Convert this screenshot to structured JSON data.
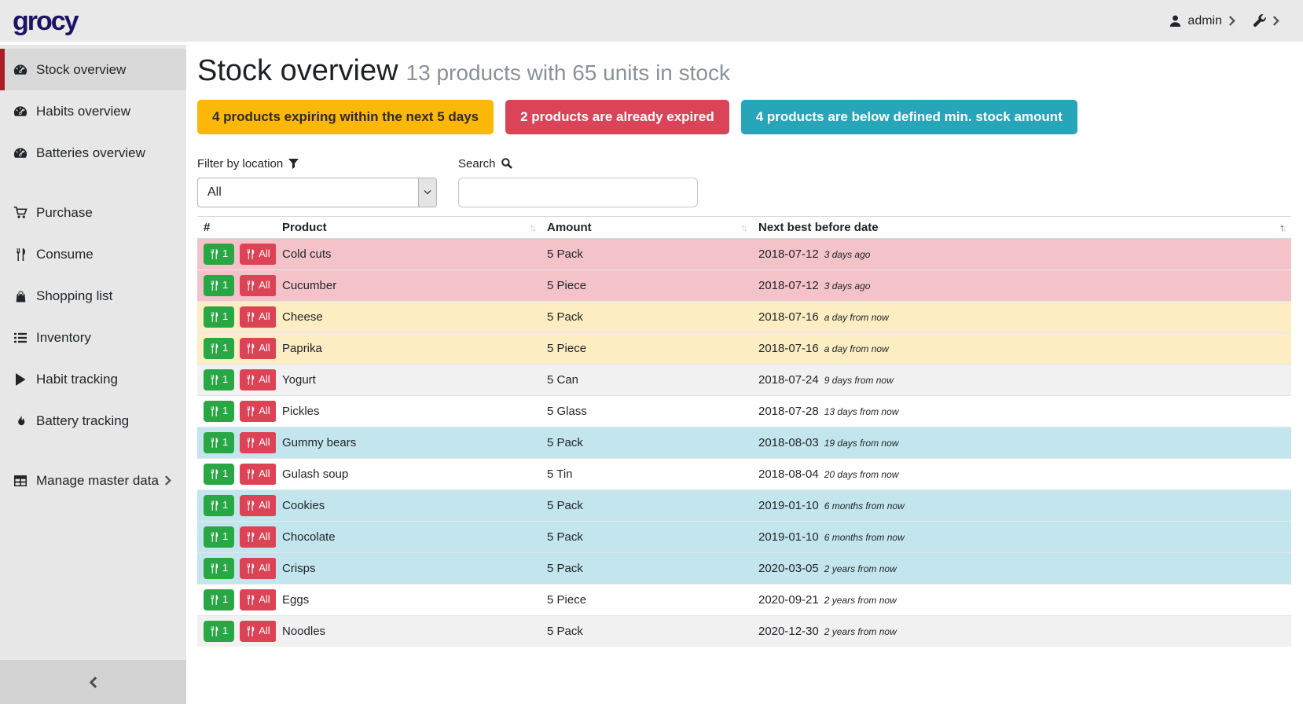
{
  "navbar": {
    "logo": "grocy",
    "user": "admin"
  },
  "sidebar": {
    "items": [
      {
        "label": "Stock overview",
        "icon": "tachometer-icon",
        "active": true,
        "spacer_before": false,
        "chevron": false
      },
      {
        "label": "Habits overview",
        "icon": "tachometer-icon",
        "active": false,
        "spacer_before": false,
        "chevron": false
      },
      {
        "label": "Batteries overview",
        "icon": "tachometer-icon",
        "active": false,
        "spacer_before": false,
        "chevron": false
      },
      {
        "label": "Purchase",
        "icon": "cart-icon",
        "active": false,
        "spacer_before": true,
        "chevron": false
      },
      {
        "label": "Consume",
        "icon": "utensils-icon",
        "active": false,
        "spacer_before": false,
        "chevron": false
      },
      {
        "label": "Shopping list",
        "icon": "shopping-bag-icon",
        "active": false,
        "spacer_before": false,
        "chevron": false
      },
      {
        "label": "Inventory",
        "icon": "list-icon",
        "active": false,
        "spacer_before": false,
        "chevron": false
      },
      {
        "label": "Habit tracking",
        "icon": "play-icon",
        "active": false,
        "spacer_before": false,
        "chevron": false
      },
      {
        "label": "Battery tracking",
        "icon": "fire-icon",
        "active": false,
        "spacer_before": false,
        "chevron": false
      },
      {
        "label": "Manage master data",
        "icon": "table-icon",
        "active": false,
        "spacer_before": true,
        "chevron": true
      }
    ]
  },
  "header": {
    "title": "Stock overview",
    "subtitle": "13 products with 65 units in stock"
  },
  "badges": [
    {
      "label": "4 products expiring within the next 5 days",
      "status": "warning"
    },
    {
      "label": "2 products are already expired",
      "status": "danger"
    },
    {
      "label": "4 products are below defined min. stock amount",
      "status": "info"
    }
  ],
  "filters": {
    "location_label": "Filter by location",
    "location_value": "All",
    "search_label": "Search",
    "search_value": ""
  },
  "table": {
    "columns": [
      "#",
      "Product",
      "Amount",
      "Next best before date"
    ],
    "sorted_by": "Next best before date",
    "sort_direction": "asc",
    "row_buttons": {
      "consume_one": "1",
      "consume_all": "All"
    },
    "rows": [
      {
        "product": "Cold cuts",
        "amount": "5 Pack",
        "date": "2018-07-12",
        "relative": "3 days ago",
        "state": "expired"
      },
      {
        "product": "Cucumber",
        "amount": "5 Piece",
        "date": "2018-07-12",
        "relative": "3 days ago",
        "state": "expired"
      },
      {
        "product": "Cheese",
        "amount": "5 Pack",
        "date": "2018-07-16",
        "relative": "a day from now",
        "state": "expiring"
      },
      {
        "product": "Paprika",
        "amount": "5 Piece",
        "date": "2018-07-16",
        "relative": "a day from now",
        "state": "expiring"
      },
      {
        "product": "Yogurt",
        "amount": "5 Can",
        "date": "2018-07-24",
        "relative": "9 days from now",
        "state": "none"
      },
      {
        "product": "Pickles",
        "amount": "5 Glass",
        "date": "2018-07-28",
        "relative": "13 days from now",
        "state": "none"
      },
      {
        "product": "Gummy bears",
        "amount": "5 Pack",
        "date": "2018-08-03",
        "relative": "19 days from now",
        "state": "belowmin"
      },
      {
        "product": "Gulash soup",
        "amount": "5 Tin",
        "date": "2018-08-04",
        "relative": "20 days from now",
        "state": "none"
      },
      {
        "product": "Cookies",
        "amount": "5 Pack",
        "date": "2019-01-10",
        "relative": "6 months from now",
        "state": "belowmin"
      },
      {
        "product": "Chocolate",
        "amount": "5 Pack",
        "date": "2019-01-10",
        "relative": "6 months from now",
        "state": "belowmin"
      },
      {
        "product": "Crisps",
        "amount": "5 Pack",
        "date": "2020-03-05",
        "relative": "2 years from now",
        "state": "belowmin"
      },
      {
        "product": "Eggs",
        "amount": "5 Piece",
        "date": "2020-09-21",
        "relative": "2 years from now",
        "state": "none"
      },
      {
        "product": "Noodles",
        "amount": "5 Pack",
        "date": "2020-12-30",
        "relative": "2 years from now",
        "state": "none"
      }
    ]
  },
  "colors": {
    "brand_logo": "#1b1464",
    "sidebar_active_accent": "#ad1d28",
    "badge_warning": "#fcb808",
    "badge_danger": "#da4358",
    "badge_info": "#26a6b8",
    "row_expired": "#f4c3ca",
    "row_expiring": "#fcedc2",
    "row_below_min": "#c3e5ee",
    "button_consume_one": "#2aa745",
    "button_consume_all": "#dc4355"
  }
}
